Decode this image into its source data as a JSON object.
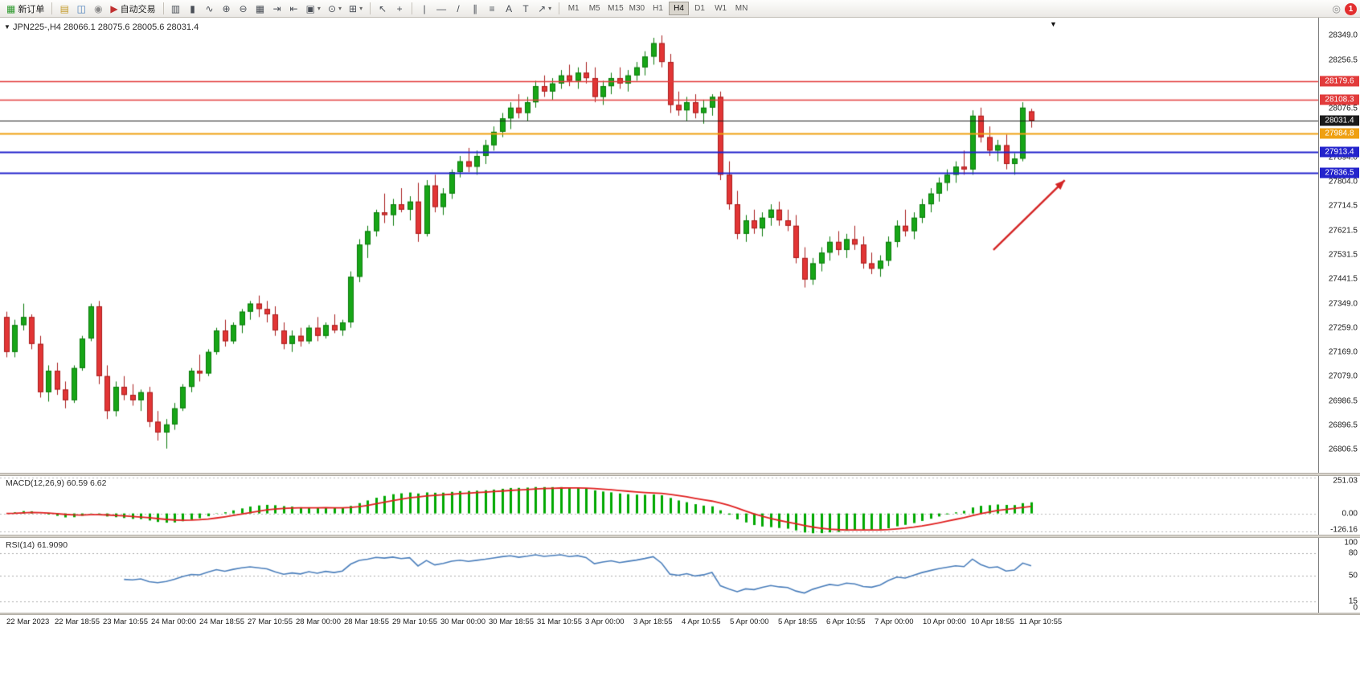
{
  "window": {
    "notification_badge": "1"
  },
  "toolbar": {
    "items": [
      {
        "name": "new-order-button",
        "glyph": "▦",
        "glyph_color": "#2f9a2f",
        "label": "新订单"
      },
      {
        "type": "sep"
      },
      {
        "name": "profile-button",
        "glyph": "▤",
        "glyph_color": "#c49a2a"
      },
      {
        "name": "market-watch-button",
        "glyph": "◫",
        "glyph_color": "#4a7ebb"
      },
      {
        "name": "refresh-button",
        "glyph": "◉",
        "glyph_color": "#8a8a8a"
      },
      {
        "name": "auto-trading-button",
        "glyph": "▶",
        "glyph_color": "#c03030",
        "label": "自动交易"
      },
      {
        "type": "sep"
      },
      {
        "name": "bar-chart-button",
        "glyph": "▥"
      },
      {
        "name": "candle-chart-button",
        "glyph": "▮"
      },
      {
        "name": "line-chart-button",
        "glyph": "∿"
      },
      {
        "name": "zoom-in-button",
        "glyph": "⊕"
      },
      {
        "name": "zoom-out-button",
        "glyph": "⊖"
      },
      {
        "name": "tile-windows-button",
        "glyph": "▦"
      },
      {
        "name": "auto-scroll-button",
        "glyph": "⇥"
      },
      {
        "name": "chart-shift-button",
        "glyph": "⇤"
      },
      {
        "name": "new-chart-button",
        "glyph": "▣",
        "caret": true
      },
      {
        "name": "period-button",
        "glyph": "⊙",
        "caret": true
      },
      {
        "name": "indicators-button",
        "glyph": "⊞",
        "caret": true
      },
      {
        "type": "sep"
      },
      {
        "name": "cursor-button",
        "glyph": "↖"
      },
      {
        "name": "crosshair-button",
        "glyph": "+"
      },
      {
        "type": "sep"
      },
      {
        "name": "vertical-line-button",
        "glyph": "|"
      },
      {
        "name": "horizontal-line-button",
        "glyph": "—"
      },
      {
        "name": "trendline-button",
        "glyph": "/"
      },
      {
        "name": "channel-button",
        "glyph": "∥"
      },
      {
        "name": "fibonacci-button",
        "glyph": "≡"
      },
      {
        "name": "text-button",
        "glyph": "A"
      },
      {
        "name": "text-label-button",
        "glyph": "T"
      },
      {
        "name": "arrows-button",
        "glyph": "↗",
        "caret": true
      },
      {
        "type": "sep"
      }
    ],
    "timeframes": [
      "M1",
      "M5",
      "M15",
      "M30",
      "H1",
      "H4",
      "D1",
      "W1",
      "MN"
    ],
    "active_timeframe": "H4",
    "alerts_icon_glyph": "◎"
  },
  "chart": {
    "title": "JPN225-,H4 28066.1 28075.6 28005.6 28031.4",
    "price_axis_ticks": [
      "28349.0",
      "28256.5",
      "28166.5",
      "28076.5",
      "27986.5",
      "27894.0",
      "27804.0",
      "27714.5",
      "27621.5",
      "27531.5",
      "27441.5",
      "27349.0",
      "27259.0",
      "27169.0",
      "27079.0",
      "26986.5",
      "26896.5",
      "26806.5"
    ],
    "levels": [
      {
        "label": "28179.6",
        "value": 28179.6,
        "color": "#e23b3b",
        "width": 1.4
      },
      {
        "label": "28108.3",
        "value": 28108.3,
        "color": "#e23b3b",
        "width": 1.4
      },
      {
        "label": "28031.4",
        "value": 28031.4,
        "color": "#1a1a1a",
        "width": 1
      },
      {
        "label": "27984.8",
        "value": 27984.8,
        "color": "#efa012",
        "width": 2
      },
      {
        "label": "27913.4",
        "value": 27913.4,
        "color": "#2323cc",
        "width": 2
      },
      {
        "label": "27836.5",
        "value": 27836.5,
        "color": "#2323cc",
        "width": 2
      }
    ]
  },
  "macd": {
    "label": "MACD(12,26,9) 60.59 6.62",
    "axis": [
      "251.03",
      "0.00",
      "-126.16"
    ],
    "axis_values": [
      251.03,
      0,
      -126.16
    ],
    "histogram_color": "#00a800",
    "signal_color": "#e02020"
  },
  "rsi": {
    "label": "RSI(14) 61.9090",
    "axis": [
      "100",
      "80",
      "50",
      "15",
      "0"
    ],
    "axis_values": [
      100,
      80,
      50,
      15,
      0
    ],
    "levels": [
      80,
      50,
      15
    ],
    "line_color": "#4a7ebb"
  },
  "time_axis": [
    "22 Mar 2023",
    "22 Mar 18:55",
    "23 Mar 10:55",
    "24 Mar 00:00",
    "24 Mar 18:55",
    "27 Mar 10:55",
    "28 Mar 00:00",
    "28 Mar 18:55",
    "29 Mar 10:55",
    "30 Mar 00:00",
    "30 Mar 18:55",
    "31 Mar 10:55",
    "3 Apr 00:00",
    "3 Apr 18:55",
    "4 Apr 10:55",
    "5 Apr 00:00",
    "5 Apr 18:55",
    "6 Apr 10:55",
    "7 Apr 00:00",
    "10 Apr 00:00",
    "10 Apr 18:55",
    "11 Apr 10:55"
  ],
  "chart_data": {
    "type": "candlestick",
    "symbol": "JPN225-",
    "timeframe": "H4",
    "title": "JPN225-,H4",
    "ohlc_current": {
      "open": 28066.1,
      "high": 28075.6,
      "low": 28005.6,
      "close": 28031.4
    },
    "y_range": [
      26720,
      28415
    ],
    "up_color": "#17a617",
    "down_color": "#e23535",
    "candles": [
      [
        27300,
        27320,
        27150,
        27170
      ],
      [
        27170,
        27290,
        27150,
        27270
      ],
      [
        27270,
        27350,
        27250,
        27300
      ],
      [
        27300,
        27310,
        27180,
        27200
      ],
      [
        27200,
        27230,
        27000,
        27020
      ],
      [
        27020,
        27120,
        26985,
        27100
      ],
      [
        27100,
        27130,
        27010,
        27030
      ],
      [
        27030,
        27060,
        26960,
        26990
      ],
      [
        26990,
        27120,
        26980,
        27110
      ],
      [
        27110,
        27230,
        27100,
        27220
      ],
      [
        27220,
        27350,
        27210,
        27340
      ],
      [
        27340,
        27360,
        27050,
        27080
      ],
      [
        27080,
        27120,
        26920,
        26950
      ],
      [
        26950,
        27060,
        26930,
        27040
      ],
      [
        27040,
        27080,
        26990,
        27010
      ],
      [
        27010,
        27050,
        26970,
        26990
      ],
      [
        26990,
        27030,
        26950,
        27020
      ],
      [
        27020,
        27040,
        26890,
        26910
      ],
      [
        26910,
        26950,
        26840,
        26870
      ],
      [
        26870,
        26920,
        26810,
        26900
      ],
      [
        26900,
        26980,
        26880,
        26960
      ],
      [
        26960,
        27050,
        26950,
        27040
      ],
      [
        27040,
        27110,
        27020,
        27100
      ],
      [
        27100,
        27160,
        27060,
        27090
      ],
      [
        27090,
        27180,
        27080,
        27170
      ],
      [
        27170,
        27260,
        27160,
        27250
      ],
      [
        27250,
        27290,
        27190,
        27210
      ],
      [
        27210,
        27280,
        27200,
        27270
      ],
      [
        27270,
        27330,
        27240,
        27320
      ],
      [
        27320,
        27360,
        27290,
        27350
      ],
      [
        27350,
        27380,
        27300,
        27330
      ],
      [
        27330,
        27360,
        27280,
        27310
      ],
      [
        27310,
        27340,
        27230,
        27250
      ],
      [
        27250,
        27280,
        27180,
        27200
      ],
      [
        27200,
        27250,
        27170,
        27230
      ],
      [
        27230,
        27260,
        27190,
        27210
      ],
      [
        27210,
        27270,
        27200,
        27260
      ],
      [
        27260,
        27300,
        27210,
        27230
      ],
      [
        27230,
        27280,
        27220,
        27270
      ],
      [
        27270,
        27310,
        27240,
        27250
      ],
      [
        27250,
        27290,
        27230,
        27280
      ],
      [
        27280,
        27470,
        27260,
        27450
      ],
      [
        27450,
        27590,
        27430,
        27570
      ],
      [
        27570,
        27640,
        27520,
        27620
      ],
      [
        27620,
        27700,
        27600,
        27690
      ],
      [
        27690,
        27760,
        27650,
        27680
      ],
      [
        27680,
        27740,
        27640,
        27720
      ],
      [
        27720,
        27780,
        27690,
        27700
      ],
      [
        27700,
        27750,
        27660,
        27730
      ],
      [
        27730,
        27800,
        27580,
        27610
      ],
      [
        27610,
        27810,
        27600,
        27790
      ],
      [
        27790,
        27830,
        27690,
        27710
      ],
      [
        27710,
        27780,
        27680,
        27760
      ],
      [
        27760,
        27850,
        27740,
        27840
      ],
      [
        27840,
        27900,
        27820,
        27880
      ],
      [
        27880,
        27930,
        27840,
        27860
      ],
      [
        27860,
        27920,
        27830,
        27900
      ],
      [
        27900,
        27960,
        27870,
        27940
      ],
      [
        27940,
        28010,
        27920,
        27990
      ],
      [
        27990,
        28060,
        27970,
        28040
      ],
      [
        28040,
        28100,
        28000,
        28080
      ],
      [
        28080,
        28130,
        28040,
        28060
      ],
      [
        28060,
        28120,
        28030,
        28100
      ],
      [
        28100,
        28180,
        28080,
        28160
      ],
      [
        28160,
        28200,
        28120,
        28140
      ],
      [
        28140,
        28190,
        28110,
        28170
      ],
      [
        28170,
        28220,
        28150,
        28200
      ],
      [
        28200,
        28240,
        28160,
        28180
      ],
      [
        28180,
        28230,
        28150,
        28210
      ],
      [
        28210,
        28250,
        28170,
        28190
      ],
      [
        28190,
        28230,
        28100,
        28120
      ],
      [
        28120,
        28180,
        28090,
        28160
      ],
      [
        28160,
        28210,
        28130,
        28190
      ],
      [
        28190,
        28230,
        28150,
        28170
      ],
      [
        28170,
        28220,
        28140,
        28200
      ],
      [
        28200,
        28250,
        28180,
        28230
      ],
      [
        28230,
        28290,
        28200,
        28270
      ],
      [
        28270,
        28340,
        28240,
        28320
      ],
      [
        28320,
        28349,
        28230,
        28250
      ],
      [
        28250,
        28280,
        28060,
        28090
      ],
      [
        28090,
        28140,
        28050,
        28070
      ],
      [
        28070,
        28120,
        28030,
        28100
      ],
      [
        28100,
        28130,
        28040,
        28060
      ],
      [
        28060,
        28110,
        28020,
        28080
      ],
      [
        28080,
        28130,
        28050,
        28120
      ],
      [
        28120,
        28140,
        27810,
        27830
      ],
      [
        27830,
        27880,
        27700,
        27720
      ],
      [
        27720,
        27770,
        27590,
        27610
      ],
      [
        27610,
        27680,
        27580,
        27660
      ],
      [
        27660,
        27700,
        27610,
        27630
      ],
      [
        27630,
        27690,
        27600,
        27670
      ],
      [
        27670,
        27720,
        27640,
        27700
      ],
      [
        27700,
        27730,
        27640,
        27660
      ],
      [
        27660,
        27700,
        27620,
        27640
      ],
      [
        27640,
        27680,
        27500,
        27520
      ],
      [
        27520,
        27560,
        27410,
        27440
      ],
      [
        27440,
        27520,
        27420,
        27500
      ],
      [
        27500,
        27560,
        27470,
        27540
      ],
      [
        27540,
        27600,
        27510,
        27580
      ],
      [
        27580,
        27620,
        27530,
        27550
      ],
      [
        27550,
        27610,
        27520,
        27590
      ],
      [
        27590,
        27640,
        27550,
        27570
      ],
      [
        27570,
        27600,
        27480,
        27500
      ],
      [
        27500,
        27540,
        27460,
        27480
      ],
      [
        27480,
        27530,
        27450,
        27510
      ],
      [
        27510,
        27600,
        27490,
        27580
      ],
      [
        27580,
        27660,
        27560,
        27640
      ],
      [
        27640,
        27700,
        27600,
        27620
      ],
      [
        27620,
        27690,
        27590,
        27670
      ],
      [
        27670,
        27740,
        27650,
        27720
      ],
      [
        27720,
        27780,
        27690,
        27760
      ],
      [
        27760,
        27820,
        27730,
        27800
      ],
      [
        27800,
        27850,
        27770,
        27830
      ],
      [
        27830,
        27880,
        27800,
        27860
      ],
      [
        27860,
        27920,
        27830,
        27850
      ],
      [
        27850,
        28070,
        27830,
        28050
      ],
      [
        28050,
        28080,
        27950,
        27970
      ],
      [
        27970,
        28010,
        27900,
        27920
      ],
      [
        27920,
        27960,
        27880,
        27940
      ],
      [
        27940,
        27980,
        27850,
        27870
      ],
      [
        27870,
        27910,
        27830,
        27890
      ],
      [
        27890,
        28100,
        27880,
        28080
      ],
      [
        28066.1,
        28075.6,
        28005.6,
        28031.4
      ]
    ],
    "annotations": [
      {
        "type": "arrow",
        "color": "#d42424",
        "from": {
          "index": 117.5,
          "price": 27550
        },
        "to": {
          "index": 126,
          "price": 27810
        }
      }
    ]
  }
}
